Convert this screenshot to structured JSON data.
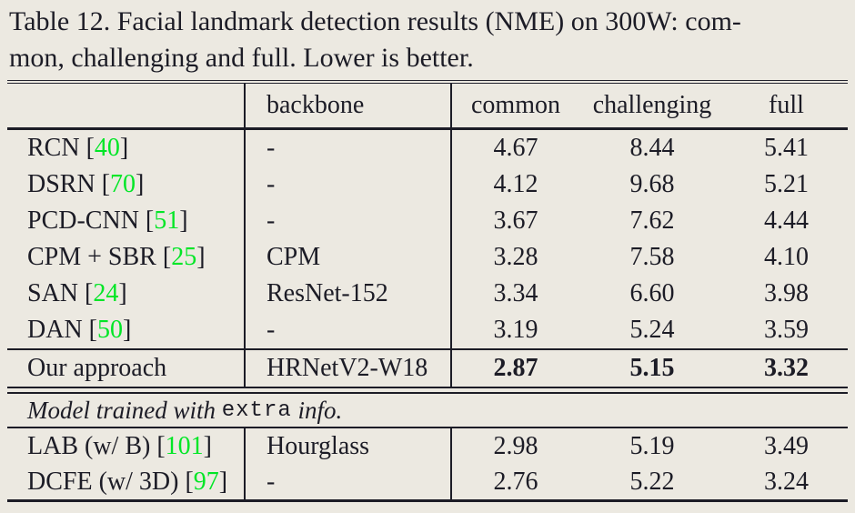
{
  "caption": {
    "line1": "Table 12. Facial landmark detection results (NME) on 300W: com-",
    "line2": "mon, challenging and full. Lower is better."
  },
  "colors": {
    "background": "#ece9e1",
    "ink": "#1c1c26",
    "citation_green": "#00e626"
  },
  "brackets": {
    "open": "[",
    "close": "]"
  },
  "table": {
    "columns": {
      "method": "",
      "backbone": "backbone",
      "common": "common",
      "challenging": "challenging",
      "full": "full"
    },
    "rows": [
      {
        "method": "RCN",
        "cite": "40",
        "backbone": "-",
        "common": "4.67",
        "challenging": "8.44",
        "full": "5.41"
      },
      {
        "method": "DSRN",
        "cite": "70",
        "backbone": "-",
        "common": "4.12",
        "challenging": "9.68",
        "full": "5.21"
      },
      {
        "method": "PCD-CNN",
        "cite": "51",
        "backbone": "-",
        "common": "3.67",
        "challenging": "7.62",
        "full": "4.44"
      },
      {
        "method": "CPM + SBR",
        "cite": "25",
        "backbone": "CPM",
        "common": "3.28",
        "challenging": "7.58",
        "full": "4.10"
      },
      {
        "method": "SAN",
        "cite": "24",
        "backbone": "ResNet-152",
        "common": "3.34",
        "challenging": "6.60",
        "full": "3.98"
      },
      {
        "method": "DAN",
        "cite": "50",
        "backbone": "-",
        "common": "3.19",
        "challenging": "5.24",
        "full": "3.59"
      }
    ],
    "our_row": {
      "method": "Our approach",
      "backbone": "HRNetV2-W18",
      "common": "2.87",
      "challenging": "5.15",
      "full": "3.32"
    },
    "note": {
      "prefix": "Model trained with ",
      "mono": "extra",
      "suffix": " info."
    },
    "extra_rows": [
      {
        "method": "LAB (w/ B)",
        "cite": "101",
        "backbone": "Hourglass",
        "common": "2.98",
        "challenging": "5.19",
        "full": "3.49"
      },
      {
        "method": "DCFE (w/ 3D)",
        "cite": "97",
        "backbone": "-",
        "common": "2.76",
        "challenging": "5.22",
        "full": "3.24"
      }
    ]
  },
  "chart_data": {
    "type": "table",
    "title": "Table 12. Facial landmark detection results (NME) on 300W: common, challenging and full. Lower is better.",
    "columns": [
      "method",
      "backbone",
      "common",
      "challenging",
      "full"
    ],
    "rows": [
      [
        "RCN [40]",
        "-",
        4.67,
        8.44,
        5.41
      ],
      [
        "DSRN [70]",
        "-",
        4.12,
        9.68,
        5.21
      ],
      [
        "PCD-CNN [51]",
        "-",
        3.67,
        7.62,
        4.44
      ],
      [
        "CPM + SBR [25]",
        "CPM",
        3.28,
        7.58,
        4.1
      ],
      [
        "SAN [24]",
        "ResNet-152",
        3.34,
        6.6,
        3.98
      ],
      [
        "DAN [50]",
        "-",
        3.19,
        5.24,
        3.59
      ],
      [
        "Our approach",
        "HRNetV2-W18",
        2.87,
        5.15,
        3.32
      ],
      [
        "LAB (w/ B) [101]",
        "Hourglass",
        2.98,
        5.19,
        3.49
      ],
      [
        "DCFE (w/ 3D) [97]",
        "-",
        2.76,
        5.22,
        3.24
      ]
    ]
  }
}
